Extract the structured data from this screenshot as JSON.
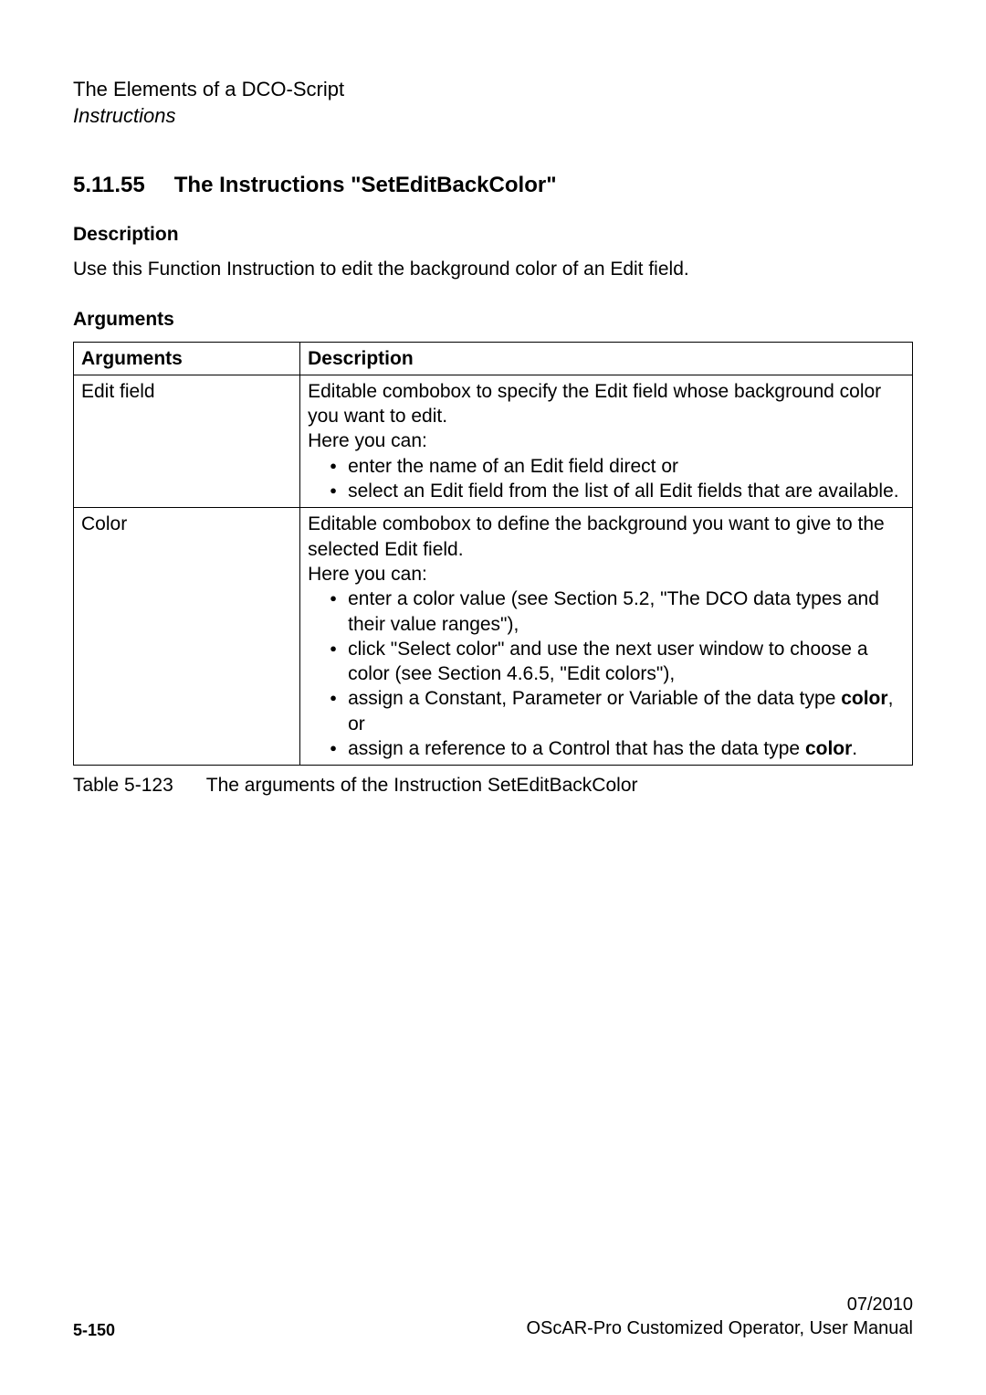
{
  "header": {
    "title": "The Elements of a DCO-Script",
    "subtitle": "Instructions"
  },
  "section": {
    "number": "5.11.55",
    "title": "The Instructions \"SetEditBackColor\""
  },
  "description": {
    "heading": "Description",
    "text": "Use this Function Instruction to edit the background color of an Edit field."
  },
  "arguments": {
    "heading": "Arguments",
    "table": {
      "headers": {
        "col1": "Arguments",
        "col2": "Description"
      },
      "rows": [
        {
          "arg": "Edit field",
          "desc_intro": "Editable combobox to specify the Edit field whose background color you want to edit.",
          "desc_here": "Here you can:",
          "bullets": [
            "enter the name of an Edit field direct or",
            "select an Edit field from the list of all Edit fields that are available."
          ]
        },
        {
          "arg": "Color",
          "desc_intro": "Editable combobox to define the background you want to give to the selected Edit field.",
          "desc_here": "Here you can:",
          "bullets_special": {
            "b1": "enter a color value (see Section 5.2, \"The DCO data types and their value ranges\"),",
            "b2": "click \"Select color\" and use the next user window to choose a color (see Section 4.6.5, \"Edit colors\"),",
            "b3_pre": "assign a Constant, Parameter or Variable of the data type ",
            "b3_bold": "color",
            "b3_post": ", or",
            "b4_pre": "assign a reference to a Control that has the data type ",
            "b4_bold": "color",
            "b4_post": "."
          }
        }
      ]
    },
    "caption": {
      "label": "Table 5-123",
      "text": "The arguments of the Instruction SetEditBackColor"
    }
  },
  "footer": {
    "page": "5-150",
    "date": "07/2010",
    "manual": "OScAR-Pro Customized Operator, User Manual"
  }
}
